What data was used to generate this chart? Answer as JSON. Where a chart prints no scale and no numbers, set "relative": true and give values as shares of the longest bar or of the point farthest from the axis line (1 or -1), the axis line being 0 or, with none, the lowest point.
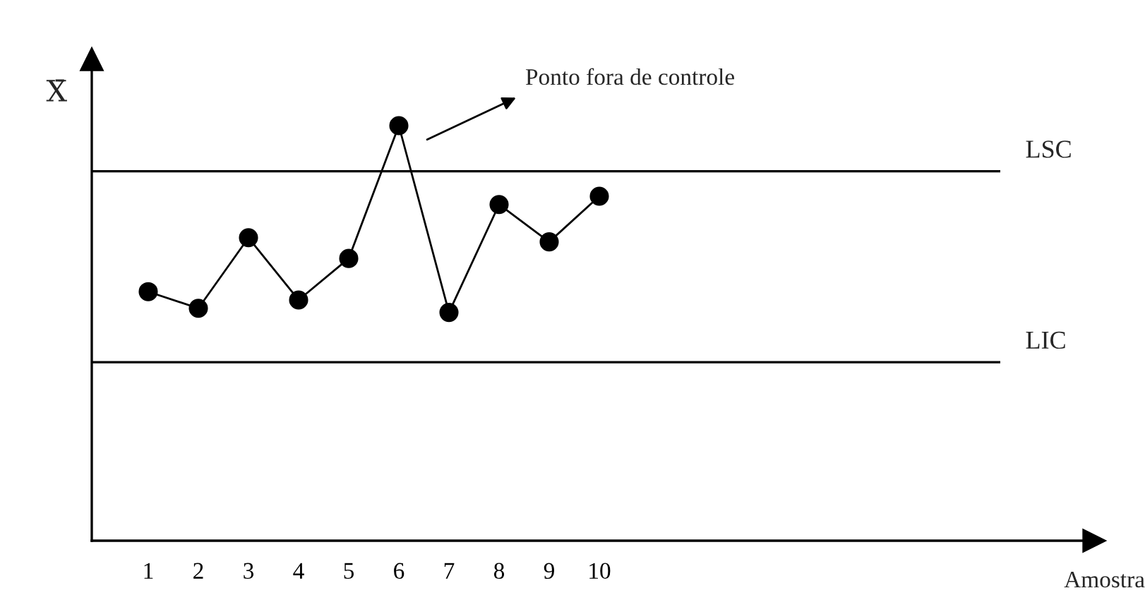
{
  "chart_data": {
    "type": "line",
    "relative": true,
    "ylabel": "X̄",
    "categories": [
      "1",
      "2",
      "3",
      "4",
      "5",
      "6",
      "7",
      "8",
      "9",
      "10"
    ],
    "series": [
      {
        "color": "#000000",
        "values": [
          0.6,
          0.56,
          0.73,
          0.58,
          0.68,
          1,
          0.55,
          0.81,
          0.72,
          0.83
        ]
      }
    ],
    "ref_lines": [
      {
        "axis": "y",
        "value": 0.89,
        "label": "LSC",
        "color": "#000000",
        "line_style": "solid"
      },
      {
        "axis": "y",
        "value": 0.43,
        "label": "LIC",
        "color": "#000000",
        "line_style": "solid"
      }
    ],
    "annotations": [
      "Ponto fora de controle",
      "Amostra"
    ],
    "marker": "circle",
    "line_style": "solid",
    "grid": false,
    "legend": false
  }
}
